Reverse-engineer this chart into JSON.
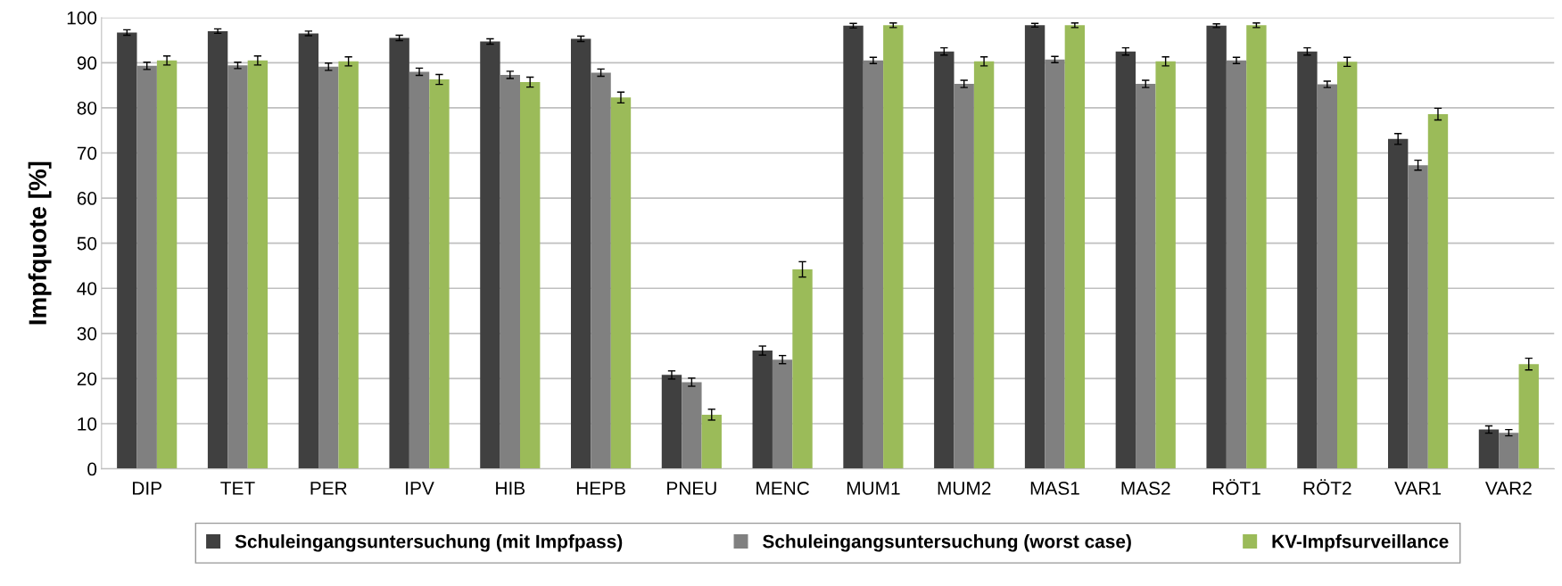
{
  "chart_data": {
    "type": "bar",
    "ylabel": "Impfquote [%]",
    "categories": [
      "DIP",
      "TET",
      "PER",
      "IPV",
      "HIB",
      "HEPB",
      "PNEU",
      "MENC",
      "MUM1",
      "MUM2",
      "MAS1",
      "MAS2",
      "RÖT1",
      "RÖT2",
      "VAR1",
      "VAR2"
    ],
    "series": [
      {
        "name": "Schuleingangsuntersuchung (mit Impfpass)",
        "color": "#404040",
        "values": [
          96.7,
          97.0,
          96.5,
          95.5,
          94.7,
          95.3,
          20.8,
          26.2,
          98.2,
          92.5,
          98.3,
          92.5,
          98.2,
          92.5,
          73.1,
          8.7
        ],
        "errors": [
          0.6,
          0.5,
          0.5,
          0.6,
          0.6,
          0.6,
          0.9,
          1.0,
          0.5,
          0.8,
          0.4,
          0.8,
          0.4,
          0.8,
          1.2,
          0.8
        ]
      },
      {
        "name": "Schuleingangsuntersuchung (worst case)",
        "color": "#808080",
        "values": [
          89.3,
          89.4,
          89.1,
          88.0,
          87.3,
          87.8,
          19.2,
          24.2,
          90.5,
          85.3,
          90.7,
          85.3,
          90.5,
          85.2,
          67.3,
          8.0
        ],
        "errors": [
          0.8,
          0.7,
          0.8,
          0.8,
          0.8,
          0.8,
          0.9,
          0.9,
          0.7,
          0.8,
          0.7,
          0.8,
          0.7,
          0.7,
          1.1,
          0.7
        ]
      },
      {
        "name": "KV-Impfsurveillance",
        "color": "#9bbb59",
        "values": [
          90.5,
          90.5,
          90.3,
          86.3,
          85.7,
          82.3,
          12.0,
          44.2,
          98.3,
          90.3,
          98.3,
          90.3,
          98.3,
          90.2,
          78.6,
          23.2
        ],
        "errors": [
          1.0,
          1.0,
          1.0,
          1.1,
          1.1,
          1.2,
          1.2,
          1.7,
          0.5,
          1.0,
          0.5,
          1.0,
          0.5,
          1.0,
          1.3,
          1.3
        ]
      }
    ],
    "ylim": [
      0,
      100
    ],
    "yticks": [
      0,
      10,
      20,
      30,
      40,
      50,
      60,
      70,
      80,
      90,
      100
    ],
    "grid": "y",
    "legend": "bottom"
  }
}
